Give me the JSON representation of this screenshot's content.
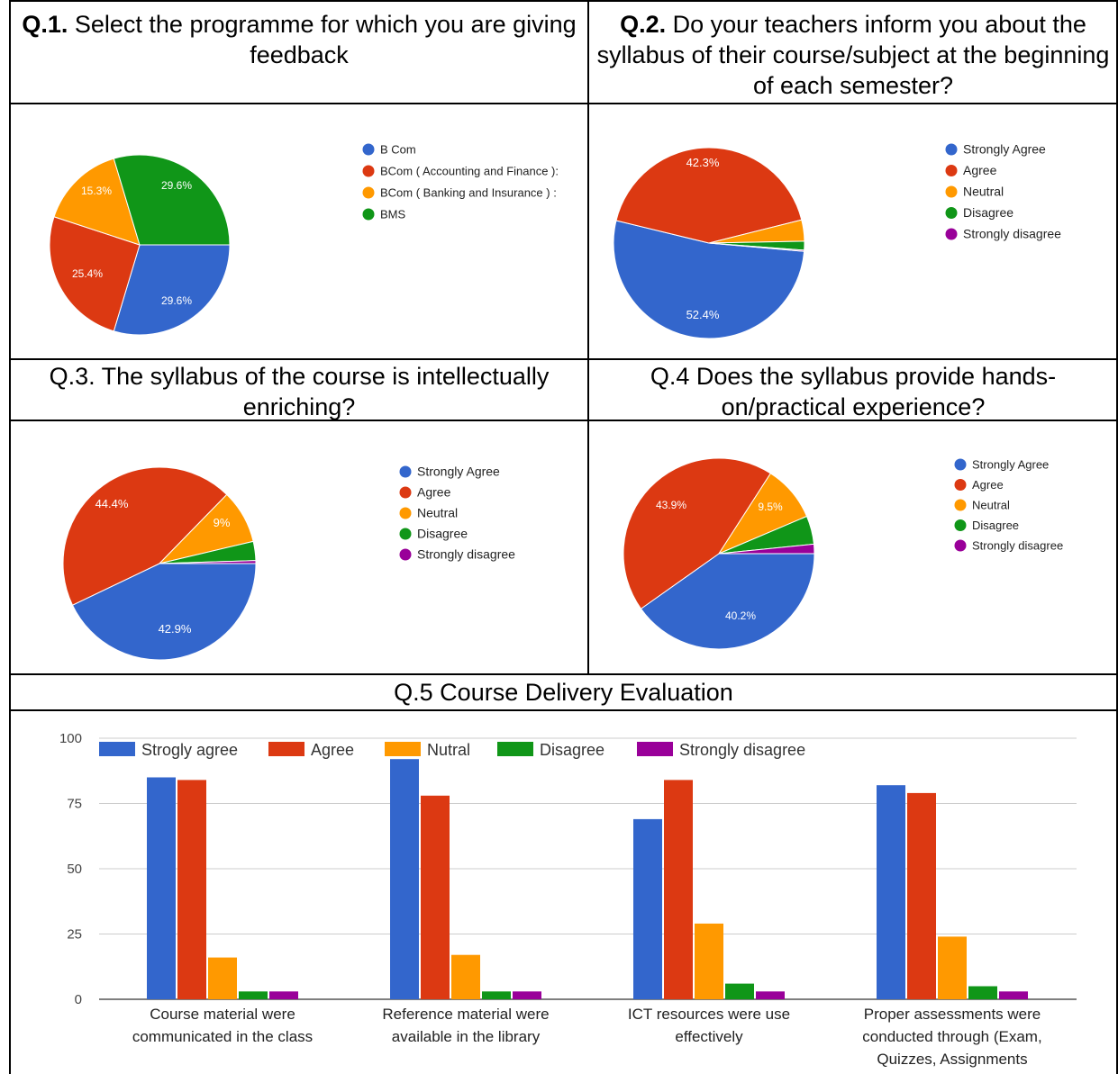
{
  "headers": {
    "q1": {
      "num": "Q.1.",
      "text": " Select the programme for which you are giving feedback"
    },
    "q2": {
      "num": "Q.2.",
      "text": " Do your teachers inform you about the syllabus of their course/subject at the beginning of each semester?"
    },
    "q3": {
      "text": "Q.3. The syllabus of the course is intellectually enriching?"
    },
    "q4": {
      "text": "Q.4 Does the syllabus provide hands-on/practical experience?"
    },
    "q5": {
      "text": "Q.5 Course Delivery Evaluation"
    }
  },
  "colors": {
    "blue": "#3366cc",
    "red": "#dc3912",
    "orange": "#ff9900",
    "green": "#109618",
    "purple": "#990099"
  },
  "chart_data": [
    {
      "type": "pie",
      "id": "q1",
      "labels": [
        "B Com",
        "BCom ( Accounting and Finance ):",
        "BCom ( Banking and Insurance ) :",
        "BMS"
      ],
      "values": [
        29.6,
        25.4,
        15.3,
        29.6
      ],
      "value_labels": [
        "29.6%",
        "25.4%",
        "15.3%",
        "29.6%"
      ],
      "colors": [
        "#3366cc",
        "#dc3912",
        "#ff9900",
        "#109618"
      ],
      "legend_position": "right"
    },
    {
      "type": "pie",
      "id": "q2",
      "labels": [
        "Strongly Agree",
        "Agree",
        "Neutral",
        "Disagree",
        "Strongly disagree"
      ],
      "values": [
        52.4,
        42.3,
        3.6,
        1.5,
        0.2
      ],
      "value_labels": [
        "52.4%",
        "42.3%",
        "",
        "",
        ""
      ],
      "colors": [
        "#3366cc",
        "#dc3912",
        "#ff9900",
        "#109618",
        "#990099"
      ],
      "legend_position": "right"
    },
    {
      "type": "pie",
      "id": "q3",
      "labels": [
        "Strongly Agree",
        "Agree",
        "Neutral",
        "Disagree",
        "Strongly disagree"
      ],
      "values": [
        42.9,
        44.4,
        9.0,
        3.2,
        0.5
      ],
      "value_labels": [
        "42.9%",
        "44.4%",
        "9%",
        "",
        ""
      ],
      "colors": [
        "#3366cc",
        "#dc3912",
        "#ff9900",
        "#109618",
        "#990099"
      ],
      "legend_position": "right"
    },
    {
      "type": "pie",
      "id": "q4",
      "labels": [
        "Strongly Agree",
        "Agree",
        "Neutral",
        "Disagree",
        "Strongly disagree"
      ],
      "values": [
        40.2,
        43.9,
        9.5,
        4.8,
        1.6
      ],
      "value_labels": [
        "40.2%",
        "43.9%",
        "9.5%",
        "",
        ""
      ],
      "colors": [
        "#3366cc",
        "#dc3912",
        "#ff9900",
        "#109618",
        "#990099"
      ],
      "legend_position": "right"
    },
    {
      "type": "bar",
      "id": "q5",
      "categories": [
        [
          "Course material were",
          "communicated in the class"
        ],
        [
          "Reference material were",
          "available in the library"
        ],
        [
          "ICT resources were use",
          "effectively"
        ],
        [
          "Proper assessments were",
          "conducted through (Exam,",
          "Quizzes, Assignments"
        ]
      ],
      "series": [
        {
          "name": "Strogly agree",
          "values": [
            85,
            92,
            69,
            82
          ]
        },
        {
          "name": "Agree",
          "values": [
            84,
            78,
            84,
            79
          ]
        },
        {
          "name": "Nutral",
          "values": [
            16,
            17,
            29,
            24
          ]
        },
        {
          "name": "Disagree",
          "values": [
            3,
            3,
            6,
            5
          ]
        },
        {
          "name": "Strongly disagree",
          "values": [
            3,
            3,
            3,
            3
          ]
        }
      ],
      "ylim": [
        0,
        100
      ],
      "yticks": [
        0,
        25,
        50,
        75,
        100
      ],
      "grid": true,
      "legend_position": "top"
    }
  ]
}
